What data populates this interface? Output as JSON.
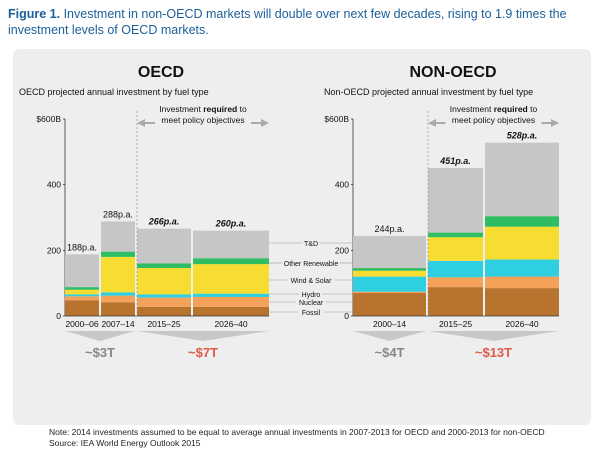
{
  "caption": {
    "prefix": "Figure 1.",
    "text": " Investment in non-OECD markets will double over next few decades, rising to 1.9 times the investment levels of OECD markets."
  },
  "note": {
    "line1": "Note: 2014 investments assumed to be equal to average annual investments in 2007-2013 for OECD and 2000-2013 for non-OECD",
    "line2": "Source: IEA World Energy Outlook 2015"
  },
  "colors": {
    "Fossil": "#b8742f",
    "Nuclear": "#f4a259",
    "Hydro": "#2ecfe0",
    "Wind & Solar": "#f7dc32",
    "Other Renewable": "#2ebd62",
    "T&D": "#c6c6c6",
    "text_grey": "#888888",
    "text_red": "#e05a4a",
    "bracket": "#aaaaaa"
  },
  "legend_labels": [
    "T&D",
    "Other Renewable",
    "Wind & Solar",
    "Hydro",
    "Nuclear",
    "Fossil"
  ],
  "chart_data": [
    {
      "type": "bar",
      "stacked": true,
      "title": "OECD",
      "subtitle": "OECD projected annual investment by fuel type",
      "ylim": [
        0,
        600
      ],
      "yticks": [
        "$600B",
        "400",
        "200",
        "0"
      ],
      "categories": [
        "2000–06",
        "2007–14",
        "2015–25",
        "2026–40"
      ],
      "totals_labels": [
        "188p.a.",
        "288p.a.",
        "266p.a.",
        "260p.a."
      ],
      "bracket_label": [
        "Investment",
        " required",
        " to",
        "meet policy objectives"
      ],
      "group_labels": [
        "~$3T",
        "~$7T"
      ],
      "series": [
        {
          "name": "Fossil",
          "values": [
            48,
            42,
            28,
            28
          ]
        },
        {
          "name": "Nuclear",
          "values": [
            12,
            20,
            28,
            30
          ]
        },
        {
          "name": "Hydro",
          "values": [
            6,
            10,
            10,
            10
          ]
        },
        {
          "name": "Wind & Solar",
          "values": [
            14,
            108,
            80,
            90
          ]
        },
        {
          "name": "Other Renewable",
          "values": [
            8,
            16,
            14,
            18
          ]
        },
        {
          "name": "T&D",
          "values": [
            100,
            92,
            106,
            84
          ]
        }
      ]
    },
    {
      "type": "bar",
      "stacked": true,
      "title": "NON-OECD",
      "subtitle": "Non-OECD projected annual investment by fuel type",
      "ylim": [
        0,
        600
      ],
      "yticks": [
        "$600B",
        "400",
        "200",
        "0"
      ],
      "categories": [
        "2000–14",
        "2015–25",
        "2026–40"
      ],
      "totals_labels": [
        "244p.a.",
        "451p.a.",
        "528p.a."
      ],
      "bracket_label": [
        "Investment",
        " required",
        " to",
        "meet policy objectives"
      ],
      "group_labels": [
        "~$4T",
        "~$13T"
      ],
      "series": [
        {
          "name": "Fossil",
          "values": [
            70,
            88,
            85
          ]
        },
        {
          "name": "Nuclear",
          "values": [
            4,
            30,
            35
          ]
        },
        {
          "name": "Hydro",
          "values": [
            46,
            50,
            52
          ]
        },
        {
          "name": "Wind & Solar",
          "values": [
            18,
            72,
            100
          ]
        },
        {
          "name": "Other Renewable",
          "values": [
            8,
            14,
            32
          ]
        },
        {
          "name": "T&D",
          "values": [
            98,
            197,
            224
          ]
        }
      ]
    }
  ]
}
